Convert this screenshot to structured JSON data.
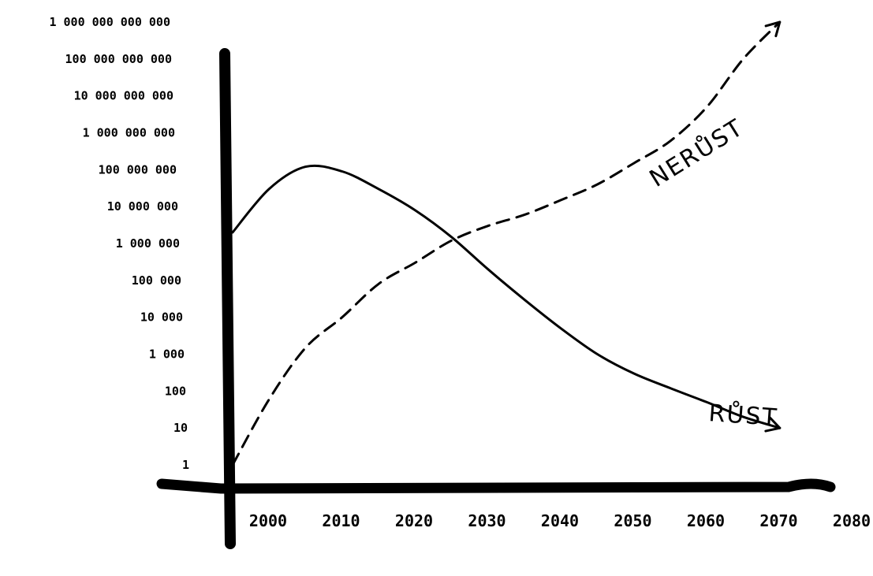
{
  "chart_data": {
    "type": "line",
    "title": "",
    "xlabel": "",
    "ylabel": "",
    "y_scale": "log",
    "y_tick_labels": [
      "1",
      "10",
      "100",
      "1 000",
      "10 000",
      "100 000",
      "1 000 000",
      "10 000 000",
      "100 000 000",
      "1 000 000 000",
      "10 000 000 000",
      "100 000 000 000",
      "1 000 000 000 000"
    ],
    "x_tick_labels": [
      "2000",
      "2010",
      "2020",
      "2030",
      "2040",
      "2050",
      "2060",
      "2070",
      "2080"
    ],
    "xlim": [
      2000,
      2080
    ],
    "ylim": [
      1,
      1000000000000
    ],
    "grid": false,
    "legend": "none",
    "series": [
      {
        "name": "RŮST",
        "style": "solid",
        "points": [
          [
            2000,
            2000000
          ],
          [
            2005,
            30000000
          ],
          [
            2010,
            120000000
          ],
          [
            2015,
            90000000
          ],
          [
            2020,
            30000000
          ],
          [
            2025,
            8000000
          ],
          [
            2030,
            1500000
          ],
          [
            2035,
            200000
          ],
          [
            2040,
            30000
          ],
          [
            2045,
            5000
          ],
          [
            2050,
            1000
          ],
          [
            2055,
            300
          ],
          [
            2060,
            120
          ],
          [
            2065,
            50
          ],
          [
            2070,
            20
          ],
          [
            2075,
            10
          ]
        ]
      },
      {
        "name": "NERŮST",
        "style": "dashed",
        "points": [
          [
            2000,
            1
          ],
          [
            2005,
            60
          ],
          [
            2010,
            1500
          ],
          [
            2015,
            10000
          ],
          [
            2020,
            80000
          ],
          [
            2025,
            300000
          ],
          [
            2030,
            1200000
          ],
          [
            2035,
            3000000
          ],
          [
            2040,
            6000000
          ],
          [
            2045,
            15000000
          ],
          [
            2050,
            40000000
          ],
          [
            2055,
            150000000
          ],
          [
            2060,
            600000000
          ],
          [
            2065,
            5000000000
          ],
          [
            2070,
            100000000000
          ],
          [
            2075,
            1000000000000
          ]
        ]
      }
    ]
  }
}
